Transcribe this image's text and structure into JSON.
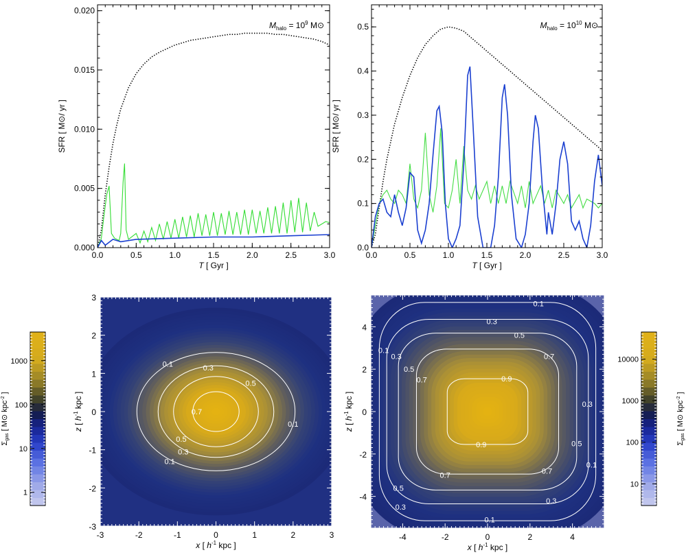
{
  "chart_data": [
    {
      "type": "line",
      "annotation": "M_halo = 10^9 M⊙",
      "annotation_parts": {
        "m": "M",
        "sub": "halo",
        "eq": " = 10",
        "sup": "9",
        "unit": " M⊙"
      },
      "xlabel": "T [ Gyr ]",
      "xlabel_parts": {
        "var": "T",
        "unit": "  [ Gyr ]"
      },
      "ylabel": "SFR [ M⊙/ yr ]",
      "xlim": [
        0,
        3
      ],
      "ylim": [
        0,
        0.0205
      ],
      "xticks": [
        0,
        0.5,
        1,
        1.5,
        2,
        2.5,
        3
      ],
      "xtick_labels": [
        "0.0",
        "0.5",
        "1.0",
        "1.5",
        "2.0",
        "2.5",
        "3.0"
      ],
      "yticks": [
        0,
        0.005,
        0.01,
        0.015,
        0.02
      ],
      "ytick_labels": [
        "0.000",
        "0.005",
        "0.010",
        "0.015",
        "0.020"
      ],
      "series": [
        {
          "style": "dotted",
          "color": "#000000",
          "x": [
            0.0,
            0.05,
            0.1,
            0.15,
            0.2,
            0.25,
            0.3,
            0.4,
            0.5,
            0.6,
            0.7,
            0.8,
            0.9,
            1.0,
            1.1,
            1.2,
            1.3,
            1.4,
            1.5,
            1.6,
            1.7,
            1.8,
            1.9,
            2.0,
            2.1,
            2.2,
            2.3,
            2.4,
            2.5,
            2.6,
            2.7,
            2.8,
            2.9,
            3.0
          ],
          "y": [
            0.0,
            0.0015,
            0.0045,
            0.0068,
            0.0088,
            0.0104,
            0.0117,
            0.0135,
            0.0147,
            0.0155,
            0.0161,
            0.0165,
            0.0168,
            0.0171,
            0.0173,
            0.0175,
            0.0176,
            0.0177,
            0.0178,
            0.0179,
            0.018,
            0.018,
            0.0181,
            0.0181,
            0.0181,
            0.0181,
            0.018,
            0.018,
            0.0179,
            0.0178,
            0.0177,
            0.0176,
            0.0174,
            0.0171
          ]
        },
        {
          "style": "solid",
          "color": "#33dd33",
          "x": [
            0.0,
            0.05,
            0.08,
            0.12,
            0.15,
            0.18,
            0.22,
            0.28,
            0.3,
            0.33,
            0.35,
            0.37,
            0.4,
            0.5,
            0.55,
            0.6,
            0.65,
            0.7,
            0.75,
            0.8,
            0.85,
            0.9,
            0.95,
            1.0,
            1.05,
            1.1,
            1.15,
            1.2,
            1.25,
            1.3,
            1.35,
            1.4,
            1.45,
            1.5,
            1.55,
            1.6,
            1.65,
            1.7,
            1.75,
            1.8,
            1.85,
            1.9,
            1.95,
            2.0,
            2.05,
            2.1,
            2.15,
            2.2,
            2.25,
            2.3,
            2.35,
            2.4,
            2.45,
            2.5,
            2.55,
            2.6,
            2.65,
            2.7,
            2.75,
            2.8,
            2.85,
            2.9,
            2.95,
            3.0
          ],
          "y": [
            0.0,
            0.0008,
            0.0025,
            0.0045,
            0.0052,
            0.0012,
            0.0008,
            0.0006,
            0.0012,
            0.0055,
            0.0071,
            0.0015,
            0.0007,
            0.0012,
            0.0004,
            0.0014,
            0.0005,
            0.0017,
            0.0006,
            0.002,
            0.0007,
            0.0022,
            0.0008,
            0.0024,
            0.0008,
            0.0026,
            0.0009,
            0.0027,
            0.0009,
            0.0029,
            0.001,
            0.0028,
            0.001,
            0.003,
            0.001,
            0.0029,
            0.0011,
            0.0031,
            0.0011,
            0.003,
            0.0011,
            0.0032,
            0.0011,
            0.0032,
            0.0012,
            0.0031,
            0.0012,
            0.0034,
            0.0012,
            0.0035,
            0.0012,
            0.0038,
            0.0012,
            0.004,
            0.0013,
            0.0042,
            0.0013,
            0.0038,
            0.0014,
            0.003,
            0.0018,
            0.002,
            0.0022,
            0.0021
          ]
        },
        {
          "style": "solid",
          "color": "#1a3fd0",
          "x": [
            0.0,
            0.05,
            0.1,
            0.2,
            0.3,
            0.5,
            1.0,
            1.5,
            2.0,
            2.5,
            3.0
          ],
          "y": [
            0.0,
            0.0006,
            0.0002,
            0.0007,
            0.0005,
            0.0007,
            0.0008,
            0.0009,
            0.0009,
            0.001,
            0.0011
          ]
        }
      ]
    },
    {
      "type": "line",
      "annotation": "M_halo = 10^10 M⊙",
      "annotation_parts": {
        "m": "M",
        "sub": "halo",
        "eq": " = 10",
        "sup": "10",
        "unit": " M⊙"
      },
      "xlabel": "T [ Gyr ]",
      "xlabel_parts": {
        "var": "T",
        "unit": "  [ Gyr ]"
      },
      "ylabel": "SFR [ M⊙/ yr ]",
      "xlim": [
        0,
        3
      ],
      "ylim": [
        0,
        0.55
      ],
      "xticks": [
        0,
        0.5,
        1,
        1.5,
        2,
        2.5,
        3
      ],
      "xtick_labels": [
        "0.0",
        "0.5",
        "1.0",
        "1.5",
        "2.0",
        "2.5",
        "3.0"
      ],
      "yticks": [
        0,
        0.1,
        0.2,
        0.3,
        0.4,
        0.5
      ],
      "ytick_labels": [
        "0.0",
        "0.1",
        "0.2",
        "0.3",
        "0.4",
        "0.5"
      ],
      "series": [
        {
          "style": "dotted",
          "color": "#000000",
          "x": [
            0.0,
            0.05,
            0.1,
            0.15,
            0.2,
            0.3,
            0.4,
            0.5,
            0.6,
            0.7,
            0.8,
            0.9,
            1.0,
            1.1,
            1.2,
            1.3,
            1.4,
            1.5,
            1.6,
            1.7,
            1.8,
            1.9,
            2.0,
            2.1,
            2.2,
            2.3,
            2.4,
            2.5,
            2.6,
            2.7,
            2.8,
            2.9,
            3.0
          ],
          "y": [
            0.0,
            0.03,
            0.09,
            0.15,
            0.2,
            0.28,
            0.34,
            0.39,
            0.43,
            0.46,
            0.48,
            0.495,
            0.5,
            0.497,
            0.49,
            0.475,
            0.46,
            0.445,
            0.43,
            0.415,
            0.4,
            0.385,
            0.37,
            0.355,
            0.34,
            0.325,
            0.31,
            0.295,
            0.28,
            0.265,
            0.25,
            0.235,
            0.22
          ]
        },
        {
          "style": "solid",
          "color": "#44dd44",
          "x": [
            0.0,
            0.05,
            0.1,
            0.15,
            0.2,
            0.25,
            0.3,
            0.35,
            0.4,
            0.45,
            0.5,
            0.55,
            0.6,
            0.65,
            0.7,
            0.75,
            0.8,
            0.85,
            0.9,
            0.95,
            1.0,
            1.05,
            1.1,
            1.15,
            1.2,
            1.25,
            1.3,
            1.35,
            1.4,
            1.5,
            1.55,
            1.6,
            1.65,
            1.7,
            1.75,
            1.8,
            1.9,
            1.95,
            2.0,
            2.05,
            2.1,
            2.2,
            2.25,
            2.3,
            2.35,
            2.4,
            2.5,
            2.55,
            2.6,
            2.7,
            2.75,
            2.8,
            2.9,
            2.95,
            3.0
          ],
          "y": [
            0.0,
            0.05,
            0.1,
            0.12,
            0.13,
            0.11,
            0.1,
            0.13,
            0.12,
            0.1,
            0.19,
            0.11,
            0.09,
            0.13,
            0.26,
            0.12,
            0.08,
            0.14,
            0.27,
            0.1,
            0.09,
            0.13,
            0.2,
            0.1,
            0.23,
            0.13,
            0.11,
            0.14,
            0.11,
            0.15,
            0.1,
            0.14,
            0.1,
            0.14,
            0.1,
            0.15,
            0.1,
            0.14,
            0.09,
            0.15,
            0.1,
            0.14,
            0.1,
            0.13,
            0.09,
            0.13,
            0.1,
            0.12,
            0.09,
            0.12,
            0.09,
            0.11,
            0.1,
            0.09,
            0.1
          ]
        },
        {
          "style": "solid",
          "color": "#1a3fd0",
          "x": [
            0.0,
            0.05,
            0.1,
            0.15,
            0.2,
            0.25,
            0.3,
            0.35,
            0.4,
            0.45,
            0.5,
            0.55,
            0.6,
            0.65,
            0.7,
            0.75,
            0.8,
            0.85,
            0.88,
            0.92,
            0.96,
            1.0,
            1.05,
            1.1,
            1.15,
            1.2,
            1.25,
            1.28,
            1.32,
            1.38,
            1.45,
            1.5,
            1.55,
            1.6,
            1.65,
            1.7,
            1.73,
            1.77,
            1.82,
            1.88,
            1.95,
            2.0,
            2.05,
            2.1,
            2.13,
            2.17,
            2.22,
            2.28,
            2.3,
            2.35,
            2.4,
            2.45,
            2.5,
            2.55,
            2.6,
            2.65,
            2.7,
            2.75,
            2.8,
            2.85,
            2.9,
            2.95,
            3.0
          ],
          "y": [
            0.0,
            0.07,
            0.1,
            0.11,
            0.08,
            0.07,
            0.12,
            0.08,
            0.05,
            0.09,
            0.17,
            0.16,
            0.04,
            0.01,
            0.04,
            0.1,
            0.21,
            0.31,
            0.32,
            0.26,
            0.1,
            0.02,
            0.0,
            0.02,
            0.05,
            0.19,
            0.39,
            0.41,
            0.28,
            0.07,
            0.0,
            0.0,
            0.0,
            0.05,
            0.16,
            0.34,
            0.37,
            0.3,
            0.12,
            0.02,
            0.0,
            0.03,
            0.1,
            0.24,
            0.3,
            0.27,
            0.14,
            0.03,
            0.08,
            0.03,
            0.1,
            0.2,
            0.24,
            0.19,
            0.06,
            0.04,
            0.06,
            0.02,
            0.0,
            0.05,
            0.15,
            0.21,
            0.14
          ]
        }
      ]
    },
    {
      "type": "heatmap",
      "xlabel": "x [ h⁻¹ kpc ]",
      "ylabel": "z [ h⁻¹ kpc ]",
      "label_parts": {
        "unit_a": " [ ",
        "h": "h",
        "sup": "-1",
        "unit_b": " kpc ]",
        "xvar": "x",
        "yvar": "z"
      },
      "xlim": [
        -3,
        3
      ],
      "ylim": [
        -3,
        3
      ],
      "xticks": [
        -3,
        -2,
        -1,
        0,
        1,
        2,
        3
      ],
      "xtick_labels": [
        "-3",
        "-2",
        "-1",
        "0",
        "1",
        "2",
        "3"
      ],
      "yticks": [
        -3,
        -2,
        -1,
        0,
        1,
        2,
        3
      ],
      "ytick_labels": [
        "-3",
        "-2",
        "-1",
        "0",
        "1",
        "2",
        "3"
      ],
      "field": {
        "rx": 1.35,
        "rz": 1.05,
        "core": 0.0,
        "shape": "ellipse"
      },
      "contours": [
        {
          "label": "0.1",
          "rx": 2.05,
          "rz": 1.55,
          "label_at": [
            {
              "x": -1.25,
              "z": 1.25
            },
            {
              "x": 2.0,
              "z": -0.32
            },
            {
              "x": -1.2,
              "z": -1.3
            }
          ]
        },
        {
          "label": "0.3",
          "rx": 1.5,
          "rz": 1.2,
          "label_at": [
            {
              "x": -0.2,
              "z": 1.15
            },
            {
              "x": -0.85,
              "z": -1.05
            }
          ]
        },
        {
          "label": "0.5",
          "rx": 1.1,
          "rz": 0.92,
          "label_at": [
            {
              "x": 0.9,
              "z": 0.75
            },
            {
              "x": -0.9,
              "z": -0.72
            }
          ]
        },
        {
          "label": "0.7",
          "rx": 0.6,
          "rz": 0.52,
          "label_at": [
            {
              "x": -0.5,
              "z": 0.0
            }
          ]
        }
      ],
      "colorbar": {
        "label": "Σgas [ M⊙ kpc⁻² ]",
        "label_parts": {
          "sym": "Σ",
          "sub": "gas",
          "unit": " [ M⊙ kpc",
          "sup": "-2",
          "end": " ]"
        },
        "ticks": [
          1,
          10,
          100,
          1000
        ],
        "tick_labels": [
          "1",
          "10",
          "100",
          "1000"
        ],
        "range": [
          0.5,
          4500
        ]
      }
    },
    {
      "type": "heatmap",
      "xlabel": "x [ h⁻¹ kpc ]",
      "ylabel": "z [ h⁻¹ kpc ]",
      "label_parts": {
        "unit_a": " [ ",
        "h": "h",
        "sup": "-1",
        "unit_b": " kpc ]",
        "xvar": "x",
        "yvar": "z"
      },
      "xlim": [
        -5.5,
        5.5
      ],
      "ylim": [
        -5.5,
        5.5
      ],
      "xticks": [
        -4,
        -2,
        0,
        2,
        4
      ],
      "xtick_labels": [
        "-4",
        "-2",
        "0",
        "2",
        "4"
      ],
      "yticks": [
        -4,
        -2,
        0,
        2,
        4
      ],
      "ytick_labels": [
        "-4",
        "-2",
        "0",
        "2",
        "4"
      ],
      "field": {
        "rx": 4.2,
        "rz": 4.1,
        "core": 0.0,
        "shape": "squircle"
      },
      "contours": [
        {
          "label": "0.1",
          "rx": 5.1,
          "rz": 5.15,
          "label_at": [
            {
              "x": 2.4,
              "z": 5.1
            },
            {
              "x": -4.9,
              "z": 2.9
            },
            {
              "x": 4.9,
              "z": -2.5
            },
            {
              "x": 0.1,
              "z": -5.1
            }
          ]
        },
        {
          "label": "0.3",
          "rx": 4.75,
          "rz": 4.35,
          "label_at": [
            {
              "x": 0.2,
              "z": 4.25
            },
            {
              "x": -4.3,
              "z": 2.6
            },
            {
              "x": 4.7,
              "z": 0.35
            },
            {
              "x": -4.1,
              "z": -4.5
            },
            {
              "x": 3.0,
              "z": -4.2
            }
          ]
        },
        {
          "label": "0.5",
          "rx": 4.2,
          "rz": 3.7,
          "label_at": [
            {
              "x": 1.5,
              "z": 3.6
            },
            {
              "x": -3.7,
              "z": 2.0
            },
            {
              "x": 4.2,
              "z": -1.5
            },
            {
              "x": -4.2,
              "z": -3.6
            }
          ]
        },
        {
          "label": "0.7",
          "rx": 3.35,
          "rz": 2.95,
          "label_at": [
            {
              "x": 2.9,
              "z": 2.6
            },
            {
              "x": -3.1,
              "z": 1.5
            },
            {
              "x": 2.8,
              "z": -2.8
            },
            {
              "x": -2.0,
              "z": -3.0
            }
          ]
        },
        {
          "label": "0.9",
          "rx": 1.9,
          "rz": 1.55,
          "label_at": [
            {
              "x": 0.9,
              "z": 1.55
            },
            {
              "x": -0.3,
              "z": -1.55
            }
          ]
        }
      ],
      "colorbar": {
        "label": "Σgas [ M⊙ kpc⁻² ]",
        "label_parts": {
          "sym": "Σ",
          "sub": "gas",
          "unit": " [ M⊙ kpc",
          "sup": "-2",
          "end": " ]"
        },
        "ticks": [
          10,
          100,
          1000,
          10000
        ],
        "tick_labels": [
          "10",
          "100",
          "1000",
          "10000"
        ],
        "range": [
          3,
          45000
        ]
      }
    }
  ]
}
